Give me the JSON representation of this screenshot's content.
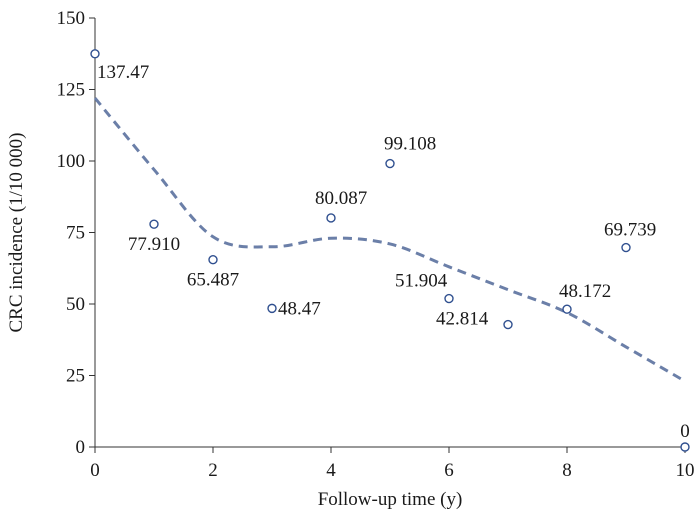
{
  "chart_data": {
    "type": "scatter",
    "title": "",
    "xlabel": "Follow-up time (y)",
    "ylabel": "CRC incidence (1/10 000)",
    "xlim": [
      0,
      10
    ],
    "ylim": [
      0,
      150
    ],
    "xticks": [
      0,
      2,
      4,
      6,
      8,
      10
    ],
    "yticks": [
      0,
      25,
      50,
      75,
      100,
      125,
      150
    ],
    "grid": false,
    "legend": "none",
    "series": [
      {
        "x": [
          0,
          1,
          2,
          3,
          4,
          5,
          6,
          7,
          8,
          9,
          10
        ],
        "y": [
          137.47,
          77.91,
          65.487,
          48.47,
          80.087,
          99.108,
          51.904,
          42.814,
          48.172,
          69.739,
          0
        ],
        "labels": [
          "137.47",
          "77.910",
          "65.487",
          "48.47",
          "80.087",
          "99.108",
          "51.904",
          "42.814",
          "48.172",
          "69.739",
          "0"
        ],
        "marker": "open-circle",
        "color": "#2f4f8f"
      }
    ],
    "trendline": {
      "style": "dashed",
      "color": "#6b7fa8",
      "x": [
        0,
        1,
        2,
        3,
        4,
        5,
        6,
        7,
        8,
        9,
        10
      ],
      "y": [
        122,
        97,
        73.5,
        70,
        73,
        71,
        63,
        55,
        47,
        35,
        23
      ]
    }
  }
}
